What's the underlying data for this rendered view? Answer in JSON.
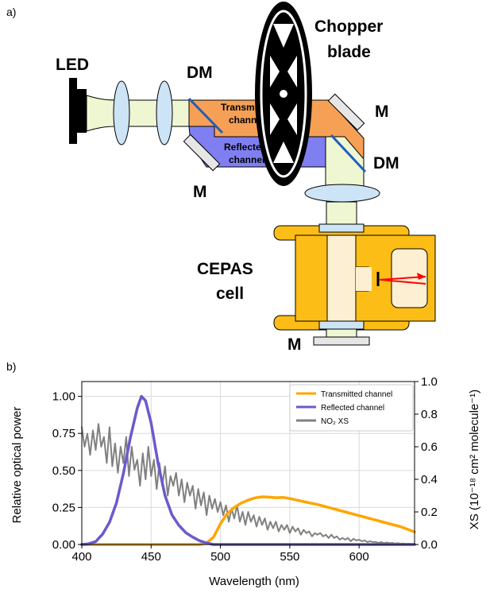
{
  "panel_a": {
    "label": "a)",
    "led": "LED",
    "dm_left": "DM",
    "dm_right": "DM",
    "chopper_line1": "Chopper",
    "chopper_line2": "blade",
    "transmitted_line1": "Transmitted",
    "transmitted_line2": "channel",
    "reflected_line1": "Reflected",
    "reflected_line2": "channel",
    "m_right": "M",
    "m_left": "M",
    "m_bottom": "M",
    "cepas_line1": "CEPAS",
    "cepas_line2": "cell",
    "colors": {
      "beam": "#eef7d2",
      "transmitted": "#f6a056",
      "reflected": "#7f7ff2",
      "lens": "#cde3f6",
      "cell": "#fbbd16",
      "cell_inner": "#fdf0d2",
      "mirror": "#e6e6e6",
      "laser": "#ff0000"
    }
  },
  "panel_b": {
    "label": "b)"
  },
  "chart_data": {
    "type": "line",
    "xlabel": "Wavelength (nm)",
    "ylabel": "Relative optical power",
    "y2label": "XS (10⁻¹⁸ cm² molecule⁻¹)",
    "xlim": [
      400,
      640
    ],
    "ylim": [
      0,
      1.1
    ],
    "y2lim": [
      0,
      1.0
    ],
    "xticks": [
      "400",
      "450",
      "500",
      "550",
      "600"
    ],
    "yticks": [
      "0.00",
      "0.25",
      "0.50",
      "0.75",
      "1.00"
    ],
    "y2ticks": [
      "0.0",
      "0.2",
      "0.4",
      "0.6",
      "0.8",
      "1.0"
    ],
    "grid": true,
    "legend_position": "top-right",
    "series": [
      {
        "name": "Transmitted channel",
        "color": "#ffa500",
        "axis": "left",
        "x": [
          400,
          485,
          490,
          495,
          500,
          505,
          510,
          515,
          520,
          525,
          530,
          535,
          540,
          545,
          550,
          560,
          570,
          580,
          590,
          600,
          610,
          620,
          630,
          640
        ],
        "y": [
          0,
          0,
          0.01,
          0.05,
          0.14,
          0.21,
          0.25,
          0.28,
          0.3,
          0.315,
          0.322,
          0.32,
          0.316,
          0.318,
          0.31,
          0.29,
          0.27,
          0.245,
          0.22,
          0.195,
          0.17,
          0.145,
          0.12,
          0.085
        ]
      },
      {
        "name": "Reflected channel",
        "color": "#6a5acd",
        "axis": "left",
        "x": [
          400,
          405,
          410,
          415,
          420,
          425,
          430,
          435,
          440,
          443,
          446,
          450,
          455,
          460,
          465,
          470,
          475,
          480,
          485,
          490,
          495,
          640
        ],
        "y": [
          0,
          0.005,
          0.02,
          0.07,
          0.15,
          0.28,
          0.48,
          0.72,
          0.92,
          1.0,
          0.97,
          0.82,
          0.55,
          0.33,
          0.2,
          0.13,
          0.08,
          0.05,
          0.025,
          0.01,
          0,
          0
        ]
      },
      {
        "name": "NO₂ XS",
        "color": "#808080",
        "axis": "right",
        "x": [
          400,
          402,
          404,
          406,
          408,
          410,
          412,
          414,
          416,
          418,
          420,
          422,
          424,
          426,
          428,
          430,
          432,
          434,
          436,
          438,
          440,
          442,
          444,
          446,
          448,
          450,
          452,
          454,
          456,
          458,
          460,
          462,
          464,
          466,
          468,
          470,
          472,
          474,
          476,
          478,
          480,
          482,
          484,
          486,
          488,
          490,
          492,
          494,
          496,
          498,
          500,
          502,
          504,
          506,
          508,
          510,
          512,
          514,
          516,
          518,
          520,
          522,
          524,
          526,
          528,
          530,
          532,
          534,
          536,
          538,
          540,
          542,
          544,
          546,
          548,
          550,
          552,
          554,
          556,
          558,
          560,
          562,
          564,
          566,
          568,
          570,
          572,
          574,
          576,
          578,
          580,
          582,
          584,
          586,
          588,
          590,
          592,
          594,
          596,
          598,
          600,
          602,
          604,
          606,
          608,
          610,
          612,
          614,
          616,
          618,
          620,
          622,
          624,
          626,
          628,
          630,
          632,
          634,
          636,
          638,
          640
        ],
        "y": [
          0.72,
          0.6,
          0.68,
          0.55,
          0.7,
          0.58,
          0.74,
          0.6,
          0.66,
          0.5,
          0.72,
          0.48,
          0.62,
          0.44,
          0.6,
          0.5,
          0.66,
          0.42,
          0.6,
          0.46,
          0.52,
          0.36,
          0.56,
          0.4,
          0.6,
          0.42,
          0.52,
          0.34,
          0.5,
          0.36,
          0.48,
          0.3,
          0.42,
          0.36,
          0.44,
          0.3,
          0.4,
          0.26,
          0.38,
          0.3,
          0.36,
          0.22,
          0.34,
          0.24,
          0.32,
          0.18,
          0.3,
          0.22,
          0.28,
          0.2,
          0.26,
          0.18,
          0.24,
          0.14,
          0.22,
          0.16,
          0.24,
          0.14,
          0.2,
          0.12,
          0.2,
          0.14,
          0.18,
          0.11,
          0.17,
          0.12,
          0.16,
          0.09,
          0.14,
          0.1,
          0.14,
          0.08,
          0.12,
          0.09,
          0.12,
          0.07,
          0.11,
          0.08,
          0.1,
          0.06,
          0.09,
          0.07,
          0.08,
          0.05,
          0.07,
          0.06,
          0.07,
          0.05,
          0.06,
          0.04,
          0.06,
          0.04,
          0.05,
          0.03,
          0.04,
          0.03,
          0.04,
          0.02,
          0.035,
          0.025,
          0.03,
          0.02,
          0.025,
          0.015,
          0.02,
          0.015,
          0.015,
          0.01,
          0.015,
          0.008,
          0.012,
          0.008,
          0.01,
          0.006,
          0.008,
          0.005,
          0.006,
          0.004,
          0.005,
          0.003,
          0.004
        ]
      }
    ]
  }
}
